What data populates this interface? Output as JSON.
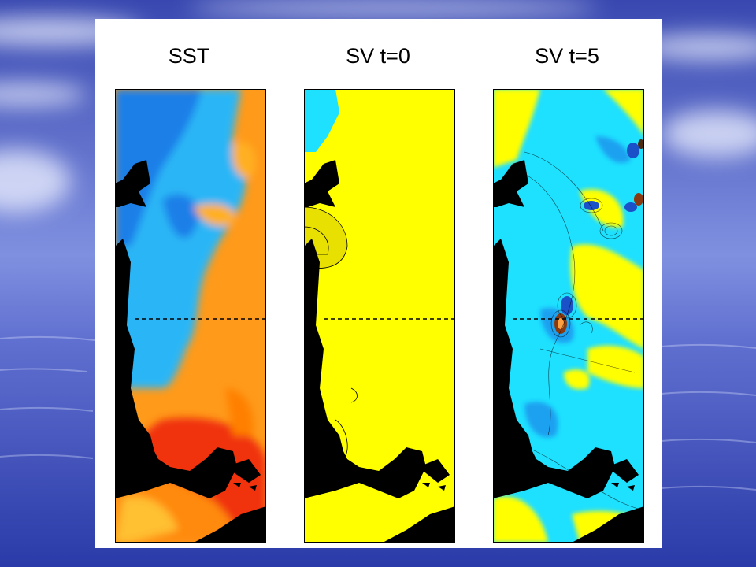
{
  "figure": {
    "panels": [
      {
        "title": "SST"
      },
      {
        "title": "SV t=0"
      },
      {
        "title": "SV t=5"
      }
    ]
  },
  "colors": {
    "land": "#000000",
    "sst_cold": "#1a7fe8",
    "sst_cool": "#29b6f6",
    "sst_warm": "#ff9a1a",
    "sst_hot": "#f03010",
    "sv_neutral": "#ffff00",
    "sv_negative": "#1ee0ff",
    "sv_strong_negative": "#1a50c8",
    "sv_strong_positive": "#8a3a10",
    "section_line": "#000000",
    "slide_sky": "#3e4fb8",
    "slide_cloud": "#e6ecff"
  }
}
